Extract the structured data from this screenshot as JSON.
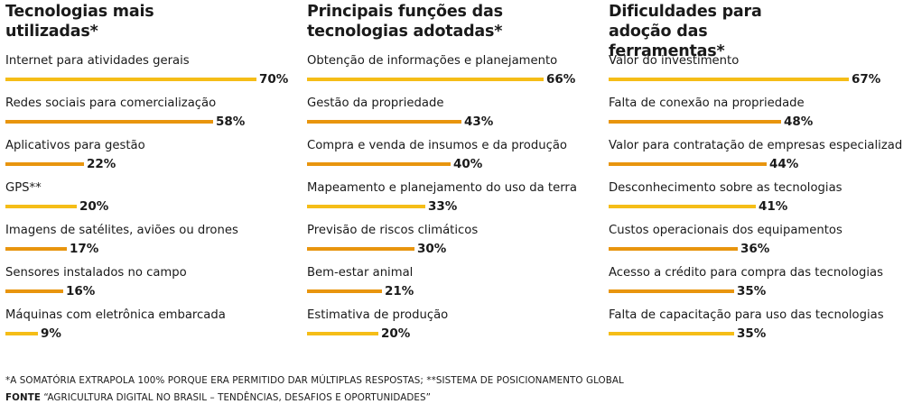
{
  "chart_data": [
    {
      "type": "bar",
      "title": "Tecnologias mais utilizadas*",
      "categories": [
        "Internet para atividades gerais",
        "Redes sociais para comercialização",
        "Aplicativos para gestão",
        "GPS**",
        "Imagens de satélites, aviões ou drones",
        "Sensores instalados no campo",
        "Máquinas com eletrônica embarcada"
      ],
      "values": [
        70,
        58,
        22,
        20,
        17,
        16,
        9
      ],
      "value_labels": [
        "70%",
        "58%",
        "22%",
        "20%",
        "17%",
        "16%",
        "9%"
      ],
      "colors": [
        "#f5bd17",
        "#e8950e",
        "#e8950e",
        "#f5bd17",
        "#e8950e",
        "#e8950e",
        "#f5bd17"
      ],
      "xlim": [
        0,
        70
      ]
    },
    {
      "type": "bar",
      "title": "Principais funções das tecnologias adotadas*",
      "categories": [
        "Obtenção de informações e planejamento",
        "Gestão da propriedade",
        "Compra e venda de insumos e da produção",
        "Mapeamento e planejamento do uso da terra",
        "Previsão de riscos climáticos",
        "Bem-estar animal",
        "Estimativa de produção"
      ],
      "values": [
        66,
        43,
        40,
        33,
        30,
        21,
        20
      ],
      "value_labels": [
        "66%",
        "43%",
        "40%",
        "33%",
        "30%",
        "21%",
        "20%"
      ],
      "colors": [
        "#f5bd17",
        "#e8950e",
        "#e8950e",
        "#f5bd17",
        "#e8950e",
        "#e8950e",
        "#f5bd17"
      ],
      "xlim": [
        0,
        70
      ]
    },
    {
      "type": "bar",
      "title": "Dificuldades para adoção das ferramentas*",
      "categories": [
        "Valor do investimento",
        "Falta de conexão na propriedade",
        "Valor para contratação de empresas especializadas",
        "Desconhecimento sobre as tecnologias",
        "Custos operacionais dos equipamentos",
        "Acesso a crédito para compra das tecnologias",
        "Falta de capacitação para uso das tecnologias"
      ],
      "values": [
        67,
        48,
        44,
        41,
        36,
        35,
        35
      ],
      "value_labels": [
        "67%",
        "48%",
        "44%",
        "41%",
        "36%",
        "35%",
        "35%"
      ],
      "colors": [
        "#f5bd17",
        "#e8950e",
        "#e8950e",
        "#f5bd17",
        "#e8950e",
        "#e8950e",
        "#f5bd17"
      ],
      "xlim": [
        0,
        70
      ]
    }
  ],
  "footnote": "*A SOMATÓRIA EXTRAPOLA 100% PORQUE ERA PERMITIDO DAR MÚLTIPLAS RESPOSTAS; **SISTEMA DE POSICIONAMENTO GLOBAL",
  "source": {
    "label": "FONTE",
    "text": "“AGRICULTURA DIGITAL NO BRASIL – TENDÊNCIAS, DESAFIOS E OPORTUNIDADES”"
  }
}
